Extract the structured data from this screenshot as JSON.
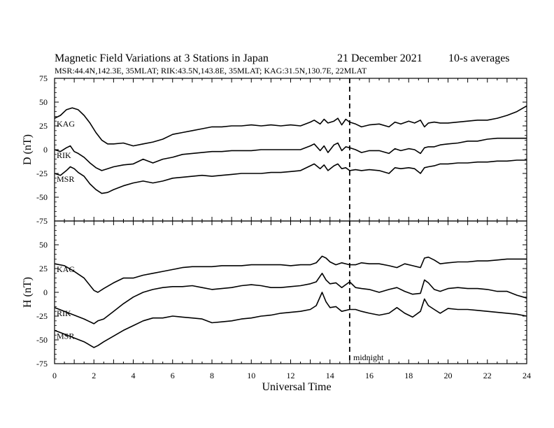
{
  "chart_data": {
    "type": "line",
    "title": "Magnetic Field Variations at 3 Stations in Japan",
    "date": "21 December 2021",
    "averaging": "10-s averages",
    "subtitle": "MSR:44.4N,142.3E, 35MLAT;  RIK:43.5N,143.8E, 35MLAT;  KAG:31.5N,130.7E, 22MLAT",
    "xlabel": "Universal Time",
    "xlim": [
      0,
      24
    ],
    "xticks": [
      "0",
      "2",
      "4",
      "6",
      "8",
      "10",
      "12",
      "14",
      "16",
      "18",
      "20",
      "22",
      "24"
    ],
    "annotation": "midnight",
    "midnight_ut": 15,
    "grid": false,
    "panels": [
      {
        "ylabel": "D (nT)",
        "ylim": [
          -75,
          75
        ],
        "yticks": [
          "75",
          "50",
          "25",
          "0",
          "-25",
          "-50",
          "-75"
        ],
        "series": [
          {
            "name": "KAG",
            "x": [
              0,
              0.3,
              0.6,
              0.9,
              1.2,
              1.5,
              1.8,
              2.1,
              2.4,
              2.7,
              3.0,
              3.5,
              4.0,
              4.5,
              5.0,
              5.5,
              6.0,
              6.5,
              7.0,
              7.5,
              8.0,
              8.5,
              9.0,
              9.5,
              10.0,
              10.5,
              11.0,
              11.5,
              12.0,
              12.5,
              13.0,
              13.2,
              13.5,
              13.7,
              13.9,
              14.2,
              14.4,
              14.6,
              14.8,
              15.0,
              15.3,
              15.6,
              16.0,
              16.5,
              17.0,
              17.3,
              17.6,
              18.0,
              18.3,
              18.6,
              18.8,
              19.0,
              19.3,
              19.6,
              20.0,
              20.5,
              21.0,
              21.5,
              22.0,
              22.5,
              23.0,
              23.5,
              24.0
            ],
            "y": [
              33,
              36,
              42,
              44,
              42,
              36,
              28,
              18,
              10,
              6,
              6,
              7,
              4,
              6,
              8,
              11,
              16,
              18,
              20,
              22,
              24,
              24,
              25,
              25,
              26,
              25,
              26,
              25,
              26,
              25,
              29,
              31,
              27,
              32,
              28,
              30,
              33,
              26,
              32,
              29,
              27,
              24,
              26,
              27,
              24,
              29,
              27,
              30,
              28,
              31,
              24,
              28,
              29,
              28,
              28,
              29,
              30,
              31,
              31,
              33,
              36,
              40,
              46
            ]
          },
          {
            "name": "RIK",
            "x": [
              0,
              0.3,
              0.6,
              0.8,
              1.0,
              1.2,
              1.5,
              1.8,
              2.1,
              2.4,
              2.7,
              3.0,
              3.5,
              4.0,
              4.5,
              5.0,
              5.5,
              6.0,
              6.5,
              7.0,
              7.5,
              8.0,
              8.5,
              9.0,
              9.5,
              10.0,
              10.5,
              11.0,
              11.5,
              12.0,
              12.5,
              13.0,
              13.2,
              13.5,
              13.7,
              13.9,
              14.2,
              14.4,
              14.6,
              14.8,
              15.0,
              15.3,
              15.6,
              16.0,
              16.5,
              17.0,
              17.3,
              17.6,
              18.0,
              18.3,
              18.6,
              18.8,
              19.0,
              19.3,
              19.6,
              20.0,
              20.5,
              21.0,
              21.5,
              22.0,
              22.5,
              23.0,
              23.5,
              24.0
            ],
            "y": [
              0,
              -2,
              2,
              4,
              -2,
              -4,
              -8,
              -14,
              -19,
              -22,
              -20,
              -18,
              -16,
              -15,
              -10,
              -14,
              -10,
              -8,
              -5,
              -4,
              -3,
              -2,
              -2,
              -1,
              -1,
              -1,
              0,
              0,
              0,
              0,
              0,
              4,
              6,
              -1,
              4,
              -3,
              5,
              7,
              -1,
              3,
              2,
              0,
              -3,
              -1,
              -1,
              -4,
              1,
              -1,
              1,
              0,
              -4,
              2,
              3,
              3,
              5,
              6,
              7,
              9,
              9,
              11,
              12,
              12,
              12,
              12
            ]
          },
          {
            "name": "MSR",
            "x": [
              0,
              0.3,
              0.6,
              0.8,
              1.0,
              1.2,
              1.5,
              1.8,
              2.1,
              2.4,
              2.7,
              3.0,
              3.5,
              4.0,
              4.5,
              5.0,
              5.5,
              6.0,
              6.5,
              7.0,
              7.5,
              8.0,
              8.5,
              9.0,
              9.5,
              10.0,
              10.5,
              11.0,
              11.5,
              12.0,
              12.5,
              13.0,
              13.2,
              13.5,
              13.7,
              13.9,
              14.2,
              14.4,
              14.6,
              14.8,
              15.0,
              15.3,
              15.6,
              16.0,
              16.5,
              17.0,
              17.3,
              17.6,
              18.0,
              18.3,
              18.6,
              18.8,
              19.0,
              19.3,
              19.6,
              20.0,
              20.5,
              21.0,
              21.5,
              22.0,
              22.5,
              23.0,
              23.5,
              24.0
            ],
            "y": [
              -25,
              -27,
              -22,
              -18,
              -20,
              -24,
              -28,
              -36,
              -42,
              -46,
              -45,
              -42,
              -38,
              -35,
              -33,
              -35,
              -33,
              -30,
              -29,
              -28,
              -27,
              -28,
              -27,
              -26,
              -25,
              -25,
              -25,
              -24,
              -24,
              -23,
              -22,
              -17,
              -15,
              -20,
              -16,
              -22,
              -17,
              -15,
              -20,
              -19,
              -22,
              -21,
              -22,
              -21,
              -22,
              -25,
              -19,
              -20,
              -19,
              -20,
              -25,
              -19,
              -18,
              -17,
              -15,
              -15,
              -14,
              -14,
              -13,
              -13,
              -12,
              -12,
              -11,
              -11
            ]
          }
        ]
      },
      {
        "ylabel": "H (nT)",
        "ylim": [
          -75,
          75
        ],
        "yticks": [
          "50",
          "25",
          "0",
          "-25",
          "-50",
          "-75"
        ],
        "series": [
          {
            "name": "KAG",
            "x": [
              0,
              0.5,
              1.0,
              1.5,
              2.0,
              2.2,
              2.5,
              3.0,
              3.5,
              4.0,
              4.5,
              5.0,
              5.5,
              6.0,
              6.5,
              7.0,
              7.5,
              8.0,
              8.5,
              9.0,
              9.5,
              10.0,
              10.5,
              11.0,
              11.5,
              12.0,
              12.5,
              13.0,
              13.3,
              13.6,
              13.8,
              14.0,
              14.3,
              14.6,
              15.0,
              15.3,
              15.6,
              16.0,
              16.5,
              17.0,
              17.4,
              17.8,
              18.2,
              18.6,
              18.8,
              19.0,
              19.3,
              19.6,
              20.0,
              20.5,
              21.0,
              21.5,
              22.0,
              22.5,
              23.0,
              23.5,
              24.0
            ],
            "y": [
              30,
              28,
              22,
              15,
              2,
              0,
              4,
              10,
              15,
              15,
              18,
              20,
              22,
              24,
              26,
              27,
              27,
              27,
              28,
              28,
              28,
              29,
              29,
              29,
              29,
              28,
              29,
              29,
              31,
              38,
              36,
              32,
              29,
              31,
              29,
              29,
              31,
              30,
              30,
              28,
              26,
              30,
              28,
              26,
              36,
              37,
              34,
              30,
              31,
              32,
              32,
              33,
              33,
              34,
              35,
              35,
              35
            ]
          },
          {
            "name": "RIK",
            "x": [
              0,
              0.5,
              1.0,
              1.5,
              2.0,
              2.2,
              2.5,
              3.0,
              3.5,
              4.0,
              4.5,
              5.0,
              5.5,
              6.0,
              6.5,
              7.0,
              7.5,
              8.0,
              8.5,
              9.0,
              9.5,
              10.0,
              10.5,
              11.0,
              11.5,
              12.0,
              12.5,
              13.0,
              13.3,
              13.6,
              13.8,
              14.0,
              14.3,
              14.6,
              15.0,
              15.3,
              15.6,
              16.0,
              16.5,
              17.0,
              17.4,
              17.8,
              18.2,
              18.6,
              18.8,
              19.0,
              19.3,
              19.6,
              20.0,
              20.5,
              21.0,
              21.5,
              22.0,
              22.5,
              23.0,
              23.5,
              24.0
            ],
            "y": [
              -16,
              -20,
              -24,
              -28,
              -33,
              -30,
              -28,
              -20,
              -12,
              -5,
              0,
              3,
              5,
              6,
              6,
              7,
              5,
              3,
              4,
              5,
              7,
              8,
              7,
              5,
              5,
              6,
              7,
              9,
              11,
              20,
              13,
              9,
              10,
              5,
              11,
              5,
              4,
              3,
              0,
              3,
              5,
              1,
              -2,
              -1,
              13,
              10,
              3,
              1,
              4,
              5,
              4,
              4,
              3,
              1,
              1,
              -3,
              -6
            ]
          },
          {
            "name": "MSR",
            "x": [
              0,
              0.5,
              1.0,
              1.5,
              2.0,
              2.2,
              2.5,
              3.0,
              3.5,
              4.0,
              4.5,
              5.0,
              5.5,
              6.0,
              6.5,
              7.0,
              7.5,
              8.0,
              8.5,
              9.0,
              9.5,
              10.0,
              10.5,
              11.0,
              11.5,
              12.0,
              12.5,
              13.0,
              13.3,
              13.6,
              13.8,
              14.0,
              14.3,
              14.6,
              15.0,
              15.3,
              15.6,
              16.0,
              16.5,
              17.0,
              17.4,
              17.8,
              18.2,
              18.6,
              18.8,
              19.0,
              19.3,
              19.6,
              20.0,
              20.5,
              21.0,
              21.5,
              22.0,
              22.5,
              23.0,
              23.5,
              24.0
            ],
            "y": [
              -40,
              -44,
              -48,
              -52,
              -58,
              -56,
              -52,
              -46,
              -40,
              -35,
              -30,
              -27,
              -27,
              -25,
              -26,
              -27,
              -28,
              -32,
              -31,
              -30,
              -28,
              -27,
              -25,
              -24,
              -22,
              -21,
              -20,
              -18,
              -14,
              0,
              -10,
              -16,
              -15,
              -20,
              -18,
              -18,
              -20,
              -22,
              -24,
              -22,
              -16,
              -22,
              -26,
              -20,
              -7,
              -14,
              -18,
              -22,
              -17,
              -18,
              -18,
              -19,
              -20,
              -21,
              -22,
              -23,
              -25
            ]
          }
        ]
      }
    ]
  }
}
